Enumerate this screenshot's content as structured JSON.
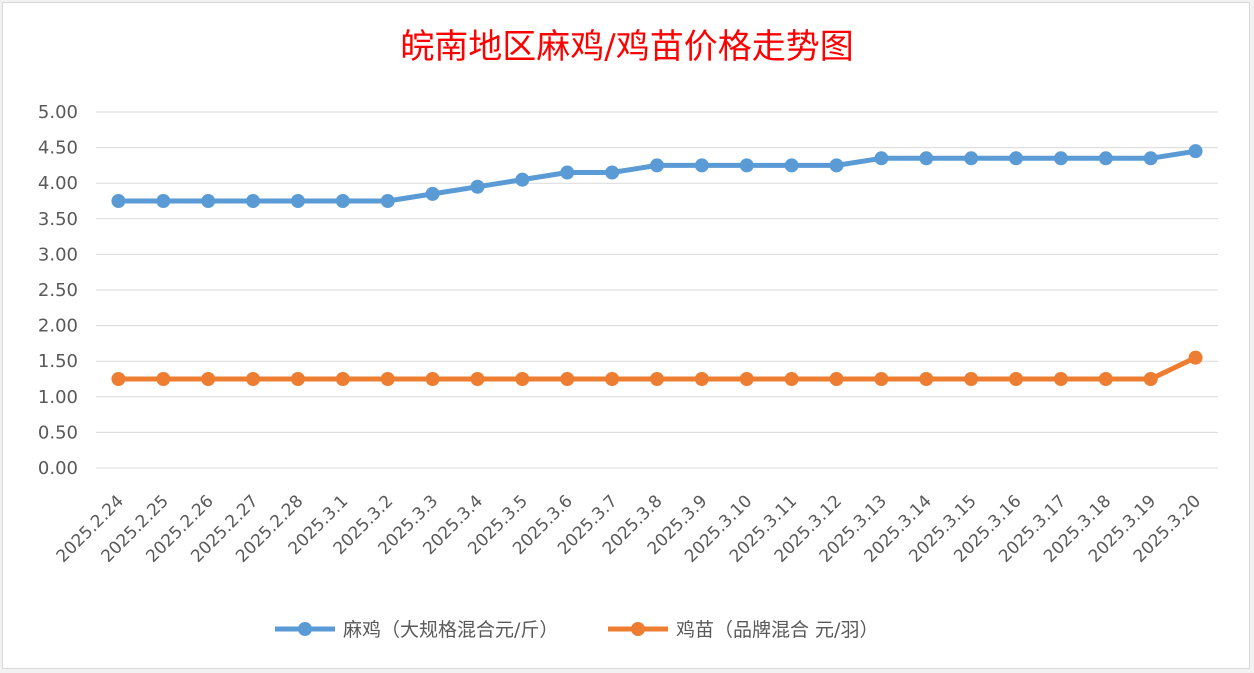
{
  "chart_data": {
    "type": "line",
    "title": "皖南地区麻鸡/鸡苗价格走势图",
    "categories": [
      "2025.2.24",
      "2025.2.25",
      "2025.2.26",
      "2025.2.27",
      "2025.2.28",
      "2025.3.1",
      "2025.3.2",
      "2025.3.3",
      "2025.3.4",
      "2025.3.5",
      "2025.3.6",
      "2025.3.7",
      "2025.3.8",
      "2025.3.9",
      "2025.3.10",
      "2025.3.11",
      "2025.3.12",
      "2025.3.13",
      "2025.3.14",
      "2025.3.15",
      "2025.3.16",
      "2025.3.17",
      "2025.3.18",
      "2025.3.19",
      "2025.3.20"
    ],
    "series": [
      {
        "name": "麻鸡（大规格混合元/斤）",
        "color": "#5b9bd5",
        "values": [
          3.75,
          3.75,
          3.75,
          3.75,
          3.75,
          3.75,
          3.75,
          3.85,
          3.95,
          4.05,
          4.15,
          4.15,
          4.25,
          4.25,
          4.25,
          4.25,
          4.25,
          4.35,
          4.35,
          4.35,
          4.35,
          4.35,
          4.35,
          4.35,
          4.45
        ]
      },
      {
        "name": "鸡苗（品牌混合 元/羽）",
        "color": "#ed7d31",
        "values": [
          1.25,
          1.25,
          1.25,
          1.25,
          1.25,
          1.25,
          1.25,
          1.25,
          1.25,
          1.25,
          1.25,
          1.25,
          1.25,
          1.25,
          1.25,
          1.25,
          1.25,
          1.25,
          1.25,
          1.25,
          1.25,
          1.25,
          1.25,
          1.25,
          1.55
        ]
      }
    ],
    "ylim": [
      0,
      5
    ],
    "yticks": [
      "0.00",
      "0.50",
      "1.00",
      "1.50",
      "2.00",
      "2.50",
      "3.00",
      "3.50",
      "4.00",
      "4.50",
      "5.00"
    ],
    "grid": true,
    "legend": "bottom"
  }
}
